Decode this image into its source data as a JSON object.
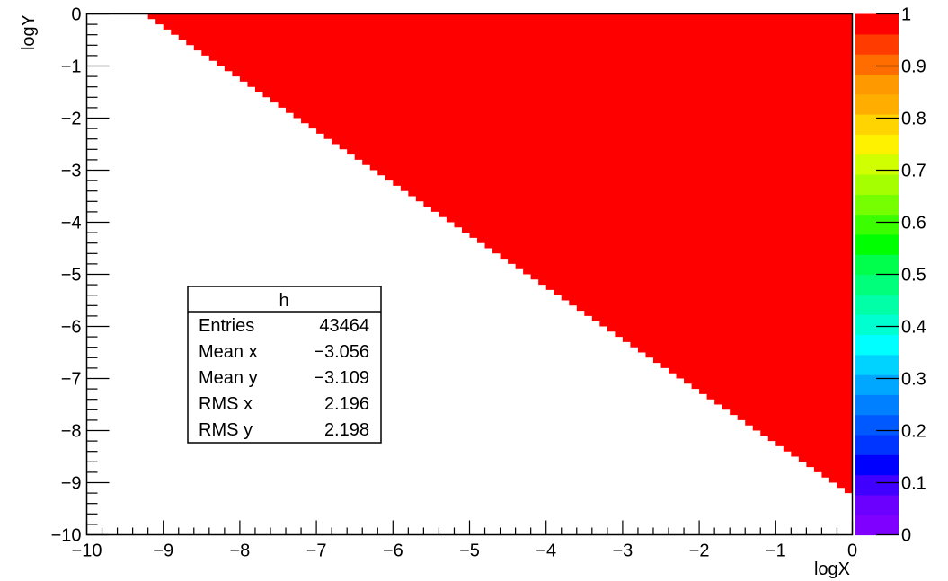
{
  "chart_data": {
    "type": "heatmap",
    "title": "",
    "xlabel": "logX",
    "ylabel": "logY",
    "xlim": [
      -10,
      0
    ],
    "ylim": [
      -10,
      0
    ],
    "x_ticks": [
      "−10",
      "−9",
      "−8",
      "−7",
      "−6",
      "−5",
      "−4",
      "−3",
      "−2",
      "−1",
      "0"
    ],
    "y_ticks": [
      "−10",
      "−9",
      "−8",
      "−7",
      "−6",
      "−5",
      "−4",
      "−3",
      "−2",
      "−1",
      "0"
    ],
    "grid": false,
    "region": {
      "description_value": "filled where logY > -9.3 - logX",
      "boundary_intercept": -9.3,
      "boundary_slope": -1,
      "value": 1,
      "color": "#ff0000"
    },
    "colorbar": {
      "min": 0,
      "max": 1,
      "tick_labels": [
        "0",
        "0.1",
        "0.2",
        "0.3",
        "0.4",
        "0.5",
        "0.6",
        "0.7",
        "0.8",
        "0.9",
        "1"
      ],
      "colors": [
        "#7f00ff",
        "#6c00ff",
        "#3f00ff",
        "#0000ff",
        "#0035ff",
        "#0059ff",
        "#007fff",
        "#00a7ff",
        "#00d3ff",
        "#00ffff",
        "#00ffd0",
        "#00ffa6",
        "#00ff7b",
        "#00ff4c",
        "#00ff00",
        "#3bff00",
        "#76ff00",
        "#a6ff00",
        "#cfff00",
        "#fff200",
        "#ffd400",
        "#ffae00",
        "#ff9900",
        "#ff6d00",
        "#ff3b00",
        "#ff0000"
      ]
    },
    "stats_box": {
      "title": "h",
      "rows": [
        {
          "label": "Entries",
          "value": "43464"
        },
        {
          "label": "Mean x",
          "value": "−3.056"
        },
        {
          "label": "Mean y",
          "value": "−3.109"
        },
        {
          "label": "RMS x",
          "value": "2.196"
        },
        {
          "label": "RMS y",
          "value": "2.198"
        }
      ]
    }
  }
}
